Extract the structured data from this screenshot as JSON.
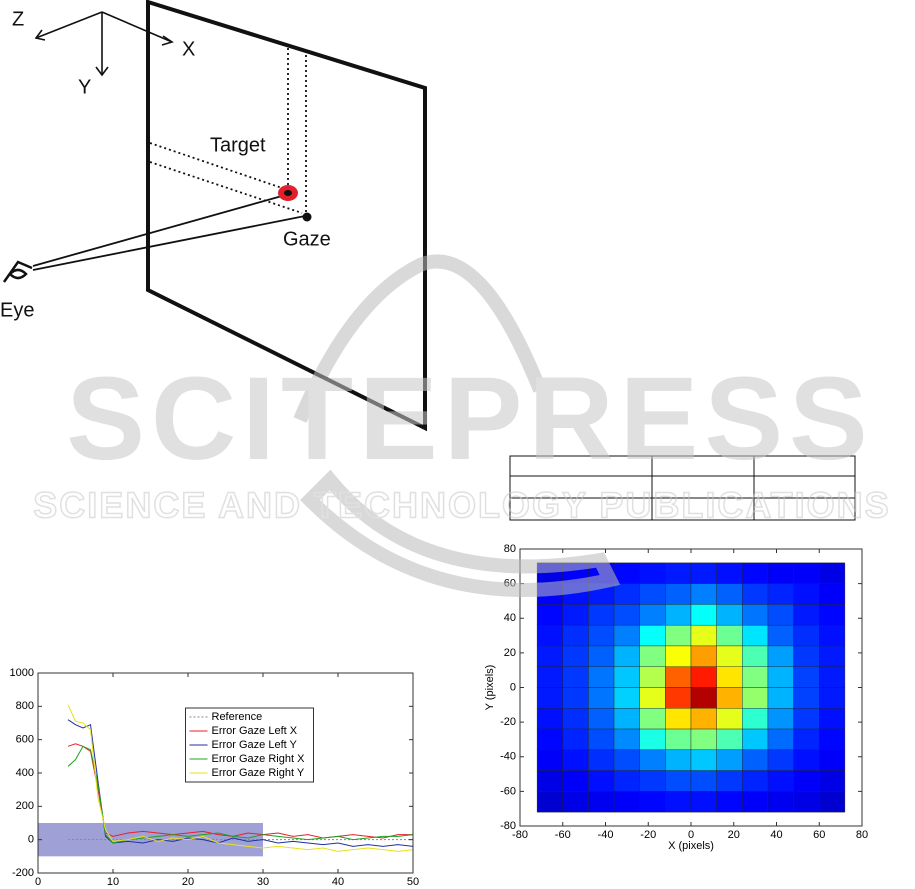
{
  "diagram": {
    "axis_z": "Z",
    "axis_x": "X",
    "axis_y": "Y",
    "target": "Target",
    "gaze": "Gaze",
    "eye": "Eye"
  },
  "watermark": {
    "title": "SCITEPRESS",
    "subtitle": "SCIENCE AND TECHNOLOGY PUBLICATIONS"
  },
  "chart_data": [
    {
      "type": "line",
      "xlim": [
        0,
        50
      ],
      "ylim": [
        -200,
        1000
      ],
      "xticks": [
        0,
        10,
        20,
        30,
        40,
        50
      ],
      "yticks": [
        -200,
        0,
        200,
        400,
        600,
        800,
        1000
      ],
      "legend": "upper center",
      "shaded_region": {
        "xlim": [
          0,
          30
        ],
        "ylim": [
          -100,
          100
        ],
        "color": "#7f82c8"
      },
      "x": [
        4,
        5,
        6,
        7,
        8,
        9,
        10,
        12,
        14,
        16,
        18,
        20,
        22,
        24,
        26,
        28,
        30,
        32,
        34,
        36,
        38,
        40,
        42,
        44,
        46,
        48,
        50
      ],
      "series": [
        {
          "name": "Reference",
          "color": "#888888",
          "linestyle": "dotted",
          "values": [
            0,
            0,
            0,
            0,
            0,
            0,
            0,
            0,
            0,
            0,
            0,
            0,
            0,
            0,
            0,
            0,
            0,
            0,
            0,
            0,
            0,
            0,
            0,
            0,
            0,
            0,
            0
          ]
        },
        {
          "name": "Error Gaze Left X",
          "color": "#e8202a",
          "values": [
            560,
            575,
            560,
            530,
            300,
            40,
            20,
            40,
            50,
            40,
            30,
            40,
            50,
            30,
            20,
            40,
            30,
            40,
            20,
            30,
            10,
            20,
            30,
            20,
            10,
            30,
            30
          ]
        },
        {
          "name": "Error Gaze Left Y",
          "color": "#2030a0",
          "values": [
            720,
            690,
            670,
            690,
            350,
            20,
            -20,
            -10,
            -20,
            0,
            -10,
            10,
            0,
            -20,
            10,
            -10,
            0,
            -20,
            -10,
            -20,
            -30,
            -20,
            -40,
            -30,
            -40,
            -30,
            -40
          ]
        },
        {
          "name": "Error Gaze Right X",
          "color": "#20a020",
          "values": [
            440,
            480,
            560,
            540,
            330,
            30,
            -20,
            0,
            10,
            20,
            30,
            20,
            30,
            40,
            20,
            10,
            30,
            20,
            10,
            0,
            10,
            20,
            0,
            10,
            20,
            20,
            30
          ]
        },
        {
          "name": "Error Gaze Right Y",
          "color": "#e8e020",
          "values": [
            810,
            710,
            700,
            660,
            250,
            60,
            -10,
            0,
            20,
            -10,
            10,
            0,
            20,
            -20,
            -30,
            -40,
            -50,
            -40,
            -50,
            -60,
            -50,
            -70,
            -60,
            -50,
            -60,
            -70,
            -60
          ]
        }
      ]
    },
    {
      "type": "heatmap",
      "xlabel": "X (pixels)",
      "ylabel": "Y (pixels)",
      "xlim": [
        -80,
        80
      ],
      "ylim": [
        -80,
        80
      ],
      "xticks": [
        -80,
        -60,
        -40,
        -20,
        0,
        20,
        40,
        60,
        80
      ],
      "yticks": [
        -80,
        -60,
        -40,
        -20,
        0,
        20,
        40,
        60,
        80
      ],
      "x": [
        -66,
        -54,
        -42,
        -30,
        -18,
        -6,
        6,
        18,
        30,
        42,
        54,
        66
      ],
      "y": [
        66,
        54,
        42,
        30,
        18,
        6,
        -6,
        -18,
        -30,
        -42,
        -54,
        -66
      ],
      "z": [
        [
          0.1,
          0.12,
          0.12,
          0.13,
          0.14,
          0.15,
          0.15,
          0.14,
          0.13,
          0.12,
          0.12,
          0.1
        ],
        [
          0.12,
          0.14,
          0.15,
          0.17,
          0.2,
          0.22,
          0.25,
          0.22,
          0.18,
          0.16,
          0.14,
          0.12
        ],
        [
          0.13,
          0.15,
          0.18,
          0.2,
          0.25,
          0.3,
          0.38,
          0.3,
          0.24,
          0.2,
          0.15,
          0.13
        ],
        [
          0.14,
          0.17,
          0.2,
          0.25,
          0.38,
          0.5,
          0.6,
          0.48,
          0.35,
          0.22,
          0.17,
          0.14
        ],
        [
          0.15,
          0.18,
          0.22,
          0.3,
          0.5,
          0.62,
          0.72,
          0.6,
          0.45,
          0.28,
          0.18,
          0.15
        ],
        [
          0.15,
          0.18,
          0.24,
          0.32,
          0.55,
          0.78,
          0.85,
          0.65,
          0.5,
          0.3,
          0.19,
          0.15
        ],
        [
          0.15,
          0.18,
          0.24,
          0.33,
          0.6,
          0.82,
          0.95,
          0.7,
          0.52,
          0.3,
          0.19,
          0.15
        ],
        [
          0.14,
          0.17,
          0.22,
          0.3,
          0.5,
          0.65,
          0.7,
          0.6,
          0.42,
          0.27,
          0.18,
          0.14
        ],
        [
          0.13,
          0.16,
          0.2,
          0.26,
          0.4,
          0.48,
          0.5,
          0.45,
          0.32,
          0.23,
          0.16,
          0.13
        ],
        [
          0.12,
          0.14,
          0.17,
          0.2,
          0.25,
          0.3,
          0.32,
          0.28,
          0.22,
          0.18,
          0.14,
          0.12
        ],
        [
          0.1,
          0.12,
          0.14,
          0.16,
          0.18,
          0.2,
          0.2,
          0.18,
          0.16,
          0.14,
          0.12,
          0.1
        ],
        [
          0.08,
          0.1,
          0.11,
          0.12,
          0.13,
          0.14,
          0.14,
          0.13,
          0.12,
          0.11,
          0.1,
          0.08
        ]
      ]
    }
  ]
}
